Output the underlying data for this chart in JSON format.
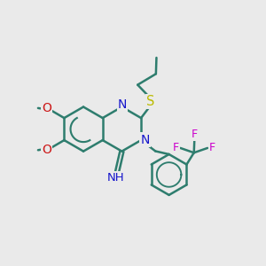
{
  "bg_color": "#EAEAEA",
  "bond_color": "#2E7D6E",
  "bond_width": 1.8,
  "atom_colors": {
    "N": "#1515CC",
    "O": "#CC1515",
    "S": "#BBBB00",
    "F": "#CC00CC"
  },
  "font_size": 8.5
}
